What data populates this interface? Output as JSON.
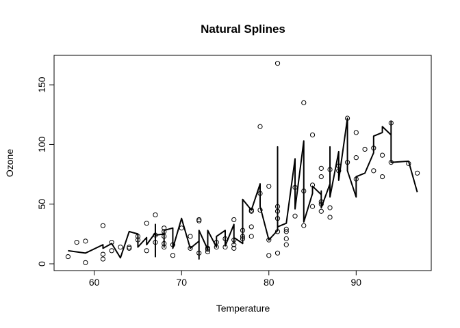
{
  "chart_data": {
    "type": "scatter",
    "title": "Natural Splines",
    "xlabel": "Temperature",
    "ylabel": "Ozone",
    "xlim": [
      55.4,
      98.6
    ],
    "ylim": [
      -5.7,
      174.7
    ],
    "xticks": [
      60,
      70,
      80,
      90
    ],
    "yticks": [
      0,
      50,
      100,
      150
    ],
    "grid": false,
    "legend": "none",
    "series": [
      {
        "type": "scatter",
        "marker": "open-circle",
        "color": "#000000",
        "points": [
          [
            57,
            6
          ],
          [
            58,
            18
          ],
          [
            59,
            1
          ],
          [
            59,
            19
          ],
          [
            61,
            32
          ],
          [
            61,
            8
          ],
          [
            61,
            4
          ],
          [
            62,
            18
          ],
          [
            62,
            11
          ],
          [
            63,
            14
          ],
          [
            64,
            14
          ],
          [
            64,
            13
          ],
          [
            65,
            23
          ],
          [
            65,
            20
          ],
          [
            66,
            34
          ],
          [
            66,
            11
          ],
          [
            67,
            41
          ],
          [
            67,
            18
          ],
          [
            67,
            24
          ],
          [
            68,
            30
          ],
          [
            68,
            27
          ],
          [
            68,
            23
          ],
          [
            68,
            14
          ],
          [
            68,
            17
          ],
          [
            69,
            7
          ],
          [
            69,
            16
          ],
          [
            70,
            30
          ],
          [
            71,
            23
          ],
          [
            71,
            13
          ],
          [
            72,
            37
          ],
          [
            72,
            36
          ],
          [
            72,
            9
          ],
          [
            73,
            12
          ],
          [
            73,
            10
          ],
          [
            73,
            13
          ],
          [
            74,
            18
          ],
          [
            74,
            14
          ],
          [
            75,
            14
          ],
          [
            75,
            21
          ],
          [
            76,
            37
          ],
          [
            76,
            16
          ],
          [
            76,
            20
          ],
          [
            76,
            13
          ],
          [
            77,
            28
          ],
          [
            77,
            23
          ],
          [
            77,
            21
          ],
          [
            78,
            45
          ],
          [
            78,
            44
          ],
          [
            78,
            23
          ],
          [
            78,
            31
          ],
          [
            79,
            115
          ],
          [
            79,
            59
          ],
          [
            79,
            45
          ],
          [
            80,
            65
          ],
          [
            80,
            20
          ],
          [
            80,
            7
          ],
          [
            81,
            168
          ],
          [
            81,
            48
          ],
          [
            81,
            44
          ],
          [
            81,
            38
          ],
          [
            81,
            27
          ],
          [
            81,
            9
          ],
          [
            82,
            29
          ],
          [
            82,
            27
          ],
          [
            82,
            21
          ],
          [
            82,
            16
          ],
          [
            83,
            40
          ],
          [
            83,
            64
          ],
          [
            84,
            135
          ],
          [
            84,
            61
          ],
          [
            84,
            32
          ],
          [
            85,
            108
          ],
          [
            85,
            66
          ],
          [
            85,
            48
          ],
          [
            86,
            80
          ],
          [
            86,
            73
          ],
          [
            86,
            52
          ],
          [
            86,
            50
          ],
          [
            86,
            44
          ],
          [
            87,
            79
          ],
          [
            87,
            47
          ],
          [
            87,
            39
          ],
          [
            88,
            82
          ],
          [
            88,
            78
          ],
          [
            89,
            122
          ],
          [
            89,
            85
          ],
          [
            90,
            110
          ],
          [
            90,
            89
          ],
          [
            90,
            71
          ],
          [
            91,
            96
          ],
          [
            92,
            97
          ],
          [
            92,
            78
          ],
          [
            93,
            91
          ],
          [
            93,
            73
          ],
          [
            94,
            118
          ],
          [
            94,
            85
          ],
          [
            96,
            84
          ],
          [
            97,
            76
          ]
        ]
      },
      {
        "type": "line",
        "color": "#000000",
        "points": [
          [
            57,
            11
          ],
          [
            58,
            10
          ],
          [
            59,
            9
          ],
          [
            61,
            16
          ],
          [
            61,
            13
          ],
          [
            62,
            17
          ],
          [
            63,
            5
          ],
          [
            64,
            27
          ],
          [
            65,
            25
          ],
          [
            65,
            14
          ],
          [
            66,
            22
          ],
          [
            66,
            16
          ],
          [
            67,
            26
          ],
          [
            67,
            33
          ],
          [
            67,
            6
          ],
          [
            67,
            24
          ],
          [
            68,
            25
          ],
          [
            68,
            14
          ],
          [
            68,
            28
          ],
          [
            69,
            30
          ],
          [
            69,
            13
          ],
          [
            70,
            38
          ],
          [
            71,
            13
          ],
          [
            72,
            19
          ],
          [
            72,
            4
          ],
          [
            72,
            28
          ],
          [
            73,
            12
          ],
          [
            73,
            28
          ],
          [
            74,
            14
          ],
          [
            74,
            23
          ],
          [
            75,
            28
          ],
          [
            75,
            15
          ],
          [
            76,
            33
          ],
          [
            76,
            17
          ],
          [
            76,
            22
          ],
          [
            77,
            17
          ],
          [
            77,
            54
          ],
          [
            78,
            45
          ],
          [
            79,
            67
          ],
          [
            79,
            48
          ],
          [
            80,
            20
          ],
          [
            81,
            28
          ],
          [
            81,
            98
          ],
          [
            81,
            31
          ],
          [
            82,
            34
          ],
          [
            83,
            88
          ],
          [
            83,
            46
          ],
          [
            84,
            103
          ],
          [
            84,
            35
          ],
          [
            85,
            59
          ],
          [
            85,
            65
          ],
          [
            86,
            58
          ],
          [
            86,
            61
          ],
          [
            86,
            47
          ],
          [
            87,
            67
          ],
          [
            87,
            98
          ],
          [
            87,
            56
          ],
          [
            88,
            94
          ],
          [
            88,
            70
          ],
          [
            89,
            122
          ],
          [
            89,
            78
          ],
          [
            90,
            56
          ],
          [
            90,
            73
          ],
          [
            91,
            76
          ],
          [
            92,
            93
          ],
          [
            92,
            107
          ],
          [
            93,
            110
          ],
          [
            93,
            115
          ],
          [
            94,
            108
          ],
          [
            94,
            119
          ],
          [
            94,
            85
          ],
          [
            96,
            86
          ],
          [
            97,
            60
          ]
        ]
      }
    ]
  }
}
